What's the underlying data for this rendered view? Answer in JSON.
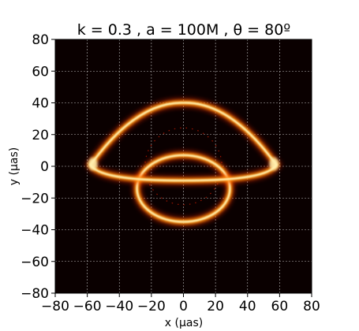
{
  "chart_data": {
    "type": "heatmap",
    "title": "k = 0.3 , a = 100M ,  θ = 80º",
    "xlabel": "x (μas)",
    "ylabel": "y (μas)",
    "xlim": [
      -80,
      80
    ],
    "ylim": [
      -80,
      80
    ],
    "xticks": [
      "−80",
      "−60",
      "−40",
      "−20",
      "0",
      "20",
      "40",
      "60",
      "80"
    ],
    "yticks": [
      "80",
      "60",
      "40",
      "20",
      "0",
      "−20",
      "−40",
      "−60",
      "−80"
    ],
    "grid": true,
    "colormap": "hot",
    "background_color": "#0a0000",
    "features": {
      "primary_ring": {
        "top_arc": {
          "center": [
            0,
            0
          ],
          "rx": 58,
          "ry": 40
        },
        "bottom_edge_y": -9,
        "left_tip": [
          -58,
          1
        ],
        "right_tip": [
          58,
          1
        ]
      },
      "inner_loop": {
        "center": [
          0,
          -14
        ],
        "rx": 29,
        "ry": 21
      },
      "secondary_ring": {
        "center": [
          0,
          0
        ],
        "r": 24
      }
    },
    "colors": {
      "outer_glow": "#ff3000",
      "mid": "#ff9a10",
      "core": "#fff0b0"
    }
  }
}
